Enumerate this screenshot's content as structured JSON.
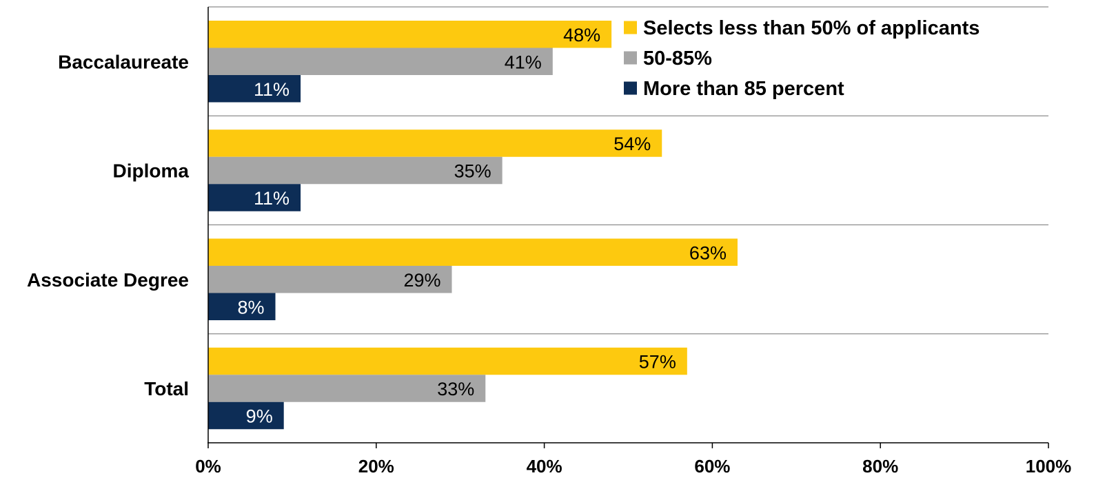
{
  "chart_data": {
    "type": "bar",
    "orientation": "horizontal",
    "categories": [
      "Baccalaureate",
      "Diploma",
      "Associate Degree",
      "Total"
    ],
    "series": [
      {
        "name": "Selects less than 50% of applicants",
        "values": [
          48,
          54,
          63,
          57
        ],
        "labels": [
          "48%",
          "54%",
          "63%",
          "57%"
        ],
        "color": "#FDC90F",
        "label_color": "#000000"
      },
      {
        "name": "50-85%",
        "values": [
          41,
          35,
          29,
          33
        ],
        "labels": [
          "41%",
          "35%",
          "29%",
          "33%"
        ],
        "color": "#A6A6A6",
        "label_color": "#000000"
      },
      {
        "name": "More than 85 percent",
        "values": [
          11,
          11,
          8,
          9
        ],
        "labels": [
          "11%",
          "11%",
          "8%",
          "9%"
        ],
        "color": "#0D2D56",
        "label_color": "#ffffff"
      }
    ],
    "xlim": [
      0,
      100
    ],
    "xticks": [
      0,
      20,
      40,
      60,
      80,
      100
    ],
    "xtick_labels": [
      "0%",
      "20%",
      "40%",
      "60%",
      "80%",
      "100%"
    ],
    "title": "",
    "xlabel": "",
    "ylabel": "",
    "grid": "horizontal separators between categories",
    "legend_position": "top-right"
  }
}
